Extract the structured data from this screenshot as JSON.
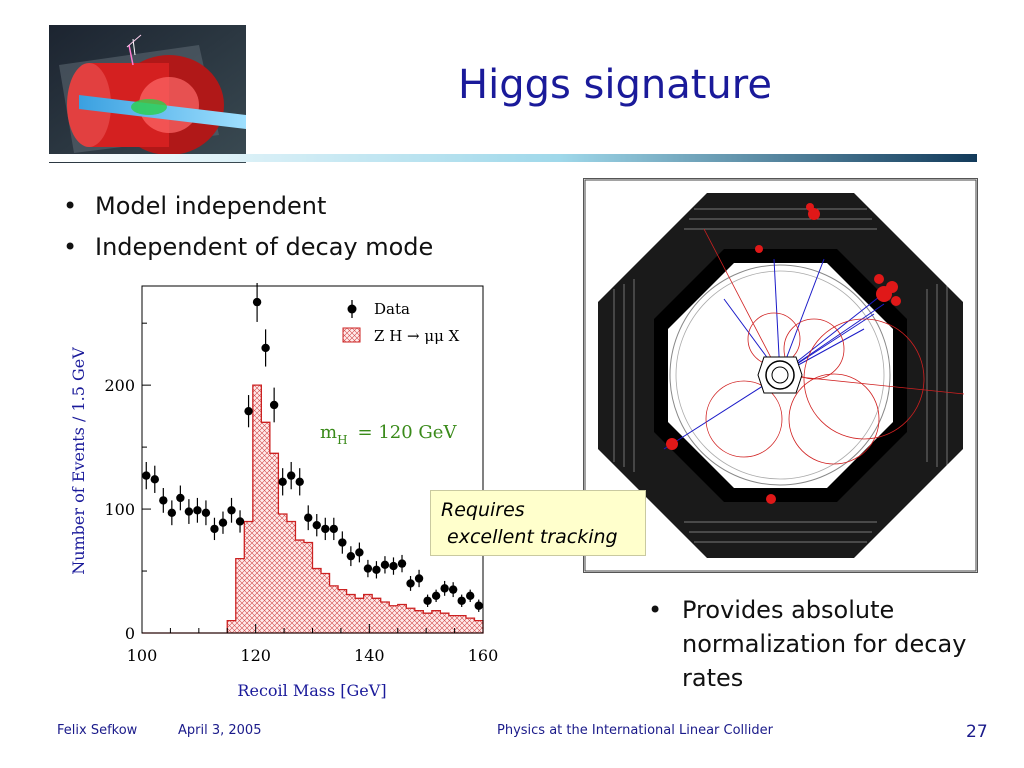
{
  "title": "Higgs signature",
  "bullets_left": [
    "Model independent",
    "Independent of decay mode"
  ],
  "bullets_right": [
    "Provides absolute normalization for decay rates"
  ],
  "bullet_symbol": "•",
  "callout": {
    "line1": "Requires",
    "line2": " excellent tracking"
  },
  "footer": {
    "author": "Felix Sefkow",
    "date": "April 3, 2005",
    "talk": "Physics at the International Linear Collider",
    "page": "27"
  },
  "colors": {
    "title": "#1a1a9a",
    "axis_text": "#1a1a9a",
    "signal": "#cc2222",
    "mass_label": "#3a8a1a",
    "callout_bg": "#ffffcc"
  },
  "chart_data": {
    "type": "histogram",
    "xlabel": "Recoil Mass  [GeV]",
    "ylabel": "Number of Events / 1.5 GeV",
    "xlim": [
      100,
      160
    ],
    "ylim": [
      0,
      280
    ],
    "xticks": [
      "100",
      "120",
      "140",
      "160"
    ],
    "yticks": [
      "0",
      "100",
      "200"
    ],
    "annotation": "m_H = 120 GeV",
    "annotation_main": "m",
    "annotation_sub": "H",
    "annotation_value": "=  120  GeV",
    "legend": [
      {
        "label": "Data",
        "kind": "marker"
      },
      {
        "label": "Z H → μμ X",
        "kind": "hatched"
      }
    ],
    "series": [
      {
        "name": "Data",
        "kind": "points",
        "x": [
          100.75,
          102.25,
          103.75,
          105.25,
          106.75,
          108.25,
          109.75,
          111.25,
          112.75,
          114.25,
          115.75,
          117.25,
          118.75,
          120.25,
          121.75,
          123.25,
          124.75,
          126.25,
          127.75,
          129.25,
          130.75,
          132.25,
          133.75,
          135.25,
          136.75,
          138.25,
          139.75,
          141.25,
          142.75,
          144.25,
          145.75,
          147.25,
          148.75,
          150.25,
          151.75,
          153.25,
          154.75,
          156.25,
          157.75,
          159.25
        ],
        "y": [
          127,
          124,
          107,
          97,
          109,
          98,
          99,
          97,
          84,
          89,
          99,
          90,
          179,
          267,
          230,
          184,
          122,
          127,
          122,
          93,
          87,
          84,
          84,
          73,
          62,
          65,
          52,
          51,
          55,
          54,
          56,
          40,
          44,
          26,
          30,
          36,
          35,
          26,
          30,
          22
        ],
        "err": [
          11,
          11,
          10,
          10,
          10,
          10,
          10,
          10,
          9,
          9,
          10,
          9,
          13,
          16,
          15,
          14,
          11,
          11,
          11,
          10,
          9,
          9,
          9,
          9,
          8,
          8,
          7,
          7,
          7,
          7,
          7,
          6,
          7,
          5,
          5,
          6,
          6,
          5,
          5,
          5
        ]
      },
      {
        "name": "Z H → μμ X",
        "kind": "step-hatched",
        "edges": [
          100,
          115,
          116.5,
          118,
          119.5,
          121,
          122.5,
          124,
          125.5,
          127,
          128.5,
          130,
          131.5,
          133,
          134.5,
          136,
          137.5,
          139,
          140.5,
          142,
          143.5,
          145,
          146.5,
          148,
          149.5,
          151,
          152.5,
          154,
          155.5,
          157,
          158.5,
          160
        ],
        "values": [
          0,
          10,
          60,
          90,
          200,
          170,
          145,
          96,
          90,
          75,
          73,
          52,
          48,
          38,
          35,
          31,
          28,
          31,
          28,
          25,
          22,
          23,
          20,
          18,
          16,
          18,
          16,
          14,
          14,
          12,
          10
        ]
      }
    ]
  }
}
